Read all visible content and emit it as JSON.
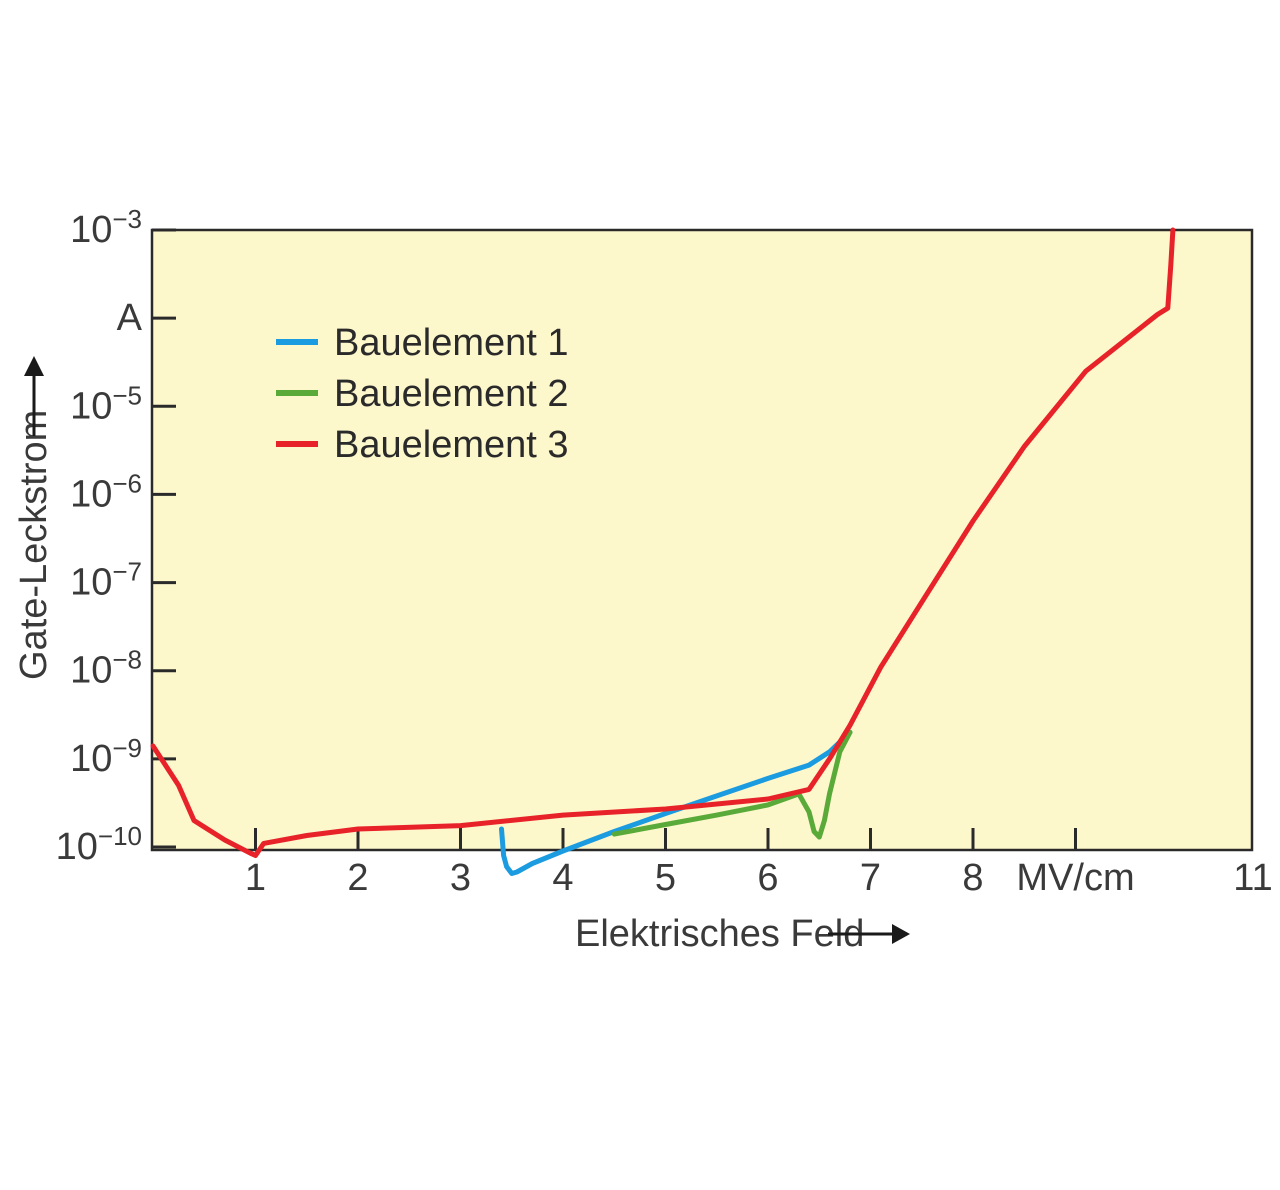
{
  "chart_data": {
    "type": "line",
    "xlabel": "Elektrisches Feld",
    "ylabel": "Gate-Leckstrom",
    "x_unit": "MV/cm",
    "y_unit": "A",
    "xlim": [
      0,
      11
    ],
    "ylim_log10": [
      -10,
      -3
    ],
    "y_log_scale": true,
    "x_ticks": [
      {
        "value": 1,
        "label": "1"
      },
      {
        "value": 2,
        "label": "2"
      },
      {
        "value": 3,
        "label": "3"
      },
      {
        "value": 4,
        "label": "4"
      },
      {
        "value": 5,
        "label": "5"
      },
      {
        "value": 6,
        "label": "6"
      },
      {
        "value": 7,
        "label": "7"
      },
      {
        "value": 8,
        "label": "8"
      },
      {
        "value": 9,
        "label": "MV/cm"
      },
      {
        "value": 11,
        "label": "11"
      }
    ],
    "y_ticks": [
      {
        "value": "1e-10",
        "base": "10",
        "exp": "−10"
      },
      {
        "value": "1e-9",
        "base": "10",
        "exp": "−9"
      },
      {
        "value": "1e-8",
        "base": "10",
        "exp": "−8"
      },
      {
        "value": "1e-7",
        "base": "10",
        "exp": "−7"
      },
      {
        "value": "1e-6",
        "base": "10",
        "exp": "−6"
      },
      {
        "value": "1e-5",
        "base": "10",
        "exp": "−5"
      },
      {
        "value": "1e-4",
        "base": "A",
        "exp": ""
      },
      {
        "value": "1e-3",
        "base": "10",
        "exp": "−3"
      }
    ],
    "legend_position": "top-left",
    "series": [
      {
        "name": "Bauelement 1",
        "color": "#1b9be0",
        "x": [
          3.4,
          3.42,
          3.45,
          3.5,
          3.55,
          3.7,
          4.0,
          4.5,
          5.0,
          5.5,
          6.0,
          6.4,
          6.6,
          6.8
        ],
        "y": [
          "1.6e-10",
          "8e-11",
          "6e-11",
          "5e-11",
          "5.2e-11",
          "6.5e-11",
          "9e-11",
          "1.5e-10",
          "2.4e-10",
          "3.8e-10",
          "6e-10",
          "8.5e-10",
          "1.2e-9",
          "2e-9"
        ]
      },
      {
        "name": "Bauelement 2",
        "color": "#5aaa3a",
        "x": [
          4.5,
          5.0,
          5.5,
          6.0,
          6.3,
          6.4,
          6.45,
          6.5,
          6.55,
          6.6,
          6.7,
          6.8
        ],
        "y": [
          "1.4e-10",
          "1.8e-10",
          "2.3e-10",
          "3e-10",
          "4e-10",
          "2.5e-10",
          "1.5e-10",
          "1.3e-10",
          "2e-10",
          "4e-10",
          "1.2e-9",
          "2e-9"
        ]
      },
      {
        "name": "Bauelement 3",
        "color": "#e82229",
        "x": [
          0.0,
          0.25,
          0.4,
          0.7,
          0.95,
          1.0,
          1.08,
          1.5,
          2.0,
          3.0,
          4.0,
          5.0,
          6.0,
          6.4,
          6.6,
          6.8,
          7.1,
          7.5,
          8.0,
          8.5,
          9.1,
          9.8,
          9.9,
          9.93,
          9.95
        ],
        "y": [
          "1.4e-9",
          "5e-10",
          "2e-10",
          "1.2e-10",
          "8.5e-11",
          "8e-11",
          "1.1e-10",
          "1.35e-10",
          "1.6e-10",
          "1.75e-10",
          "2.3e-10",
          "2.7e-10",
          "3.5e-10",
          "4.5e-10",
          "1e-9",
          "2.4e-9",
          "1.1e-8",
          "6e-8",
          "5e-7",
          "3.5e-6",
          "2.5e-5",
          "1.1e-4",
          "1.3e-4",
          "4e-4",
          "1e-3"
        ]
      }
    ]
  }
}
